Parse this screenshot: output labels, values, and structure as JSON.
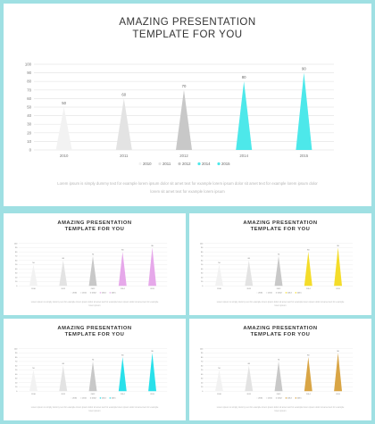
{
  "slides": [
    {
      "title_line1": "AMAZING PRESENTATION",
      "title_line2": "TEMPLATE FOR YOU",
      "description": "Lorem ipsum is simply dummy text for example lorem ipsum dolor sit amet text for example lorem ipsum dolor sit amet text for example lorem ipsum dolor lorem sit amet text for example lorem ipsum",
      "highlight_color": "#4de8ea"
    },
    {
      "title_line1": "AMAZING PRESENTATION",
      "title_line2": "TEMPLATE FOR YOU",
      "description": "Lorem ipsum is simply dummy text for example lorem ipsum dolor sit amet text for example lorem ipsum dolor sit amet text for example lorem ipsum",
      "highlight_color": "#e6a8ea"
    },
    {
      "title_line1": "AMAZING PRESENTATION",
      "title_line2": "TEMPLATE FOR YOU",
      "description": "Lorem ipsum is simply dummy text for example lorem ipsum dolor sit amet text for example lorem ipsum dolor sit amet text for example lorem ipsum",
      "highlight_color": "#f4dc2a"
    },
    {
      "title_line1": "AMAZING PRESENTATION",
      "title_line2": "TEMPLATE FOR YOU",
      "description": "Lorem ipsum is simply dummy text for example lorem ipsum dolor sit amet text for example lorem ipsum dolor sit amet text for example lorem ipsum",
      "highlight_color": "#29e0ea"
    },
    {
      "title_line1": "AMAZING PRESENTATION",
      "title_line2": "TEMPLATE FOR YOU",
      "description": "Lorem ipsum is simply dummy text for example lorem ipsum dolor sit amet text for example lorem ipsum dolor sit amet text for example lorem ipsum",
      "highlight_color": "#d9a545"
    }
  ],
  "chart_data": {
    "type": "bar",
    "categories": [
      "2010",
      "2011",
      "2012",
      "2014",
      "2015"
    ],
    "values": [
      50,
      60,
      70,
      80,
      90
    ],
    "legend": [
      "2010",
      "2011",
      "2012",
      "2014",
      "2015"
    ],
    "ylim": [
      0,
      100
    ],
    "yticks": [
      0,
      10,
      20,
      30,
      40,
      50,
      60,
      70,
      80,
      90,
      100
    ],
    "grid": true,
    "legend_position": "bottom",
    "base_colors": [
      "#f2f2f2",
      "#e3e3e3",
      "#c8c8c8"
    ]
  }
}
